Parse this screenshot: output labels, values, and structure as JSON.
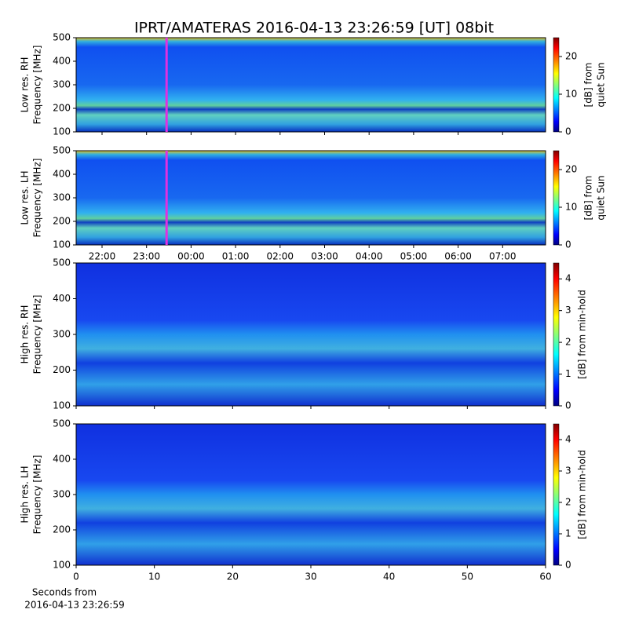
{
  "figure": {
    "title": "IPRT/AMATERAS 2016-04-13 23:26:59 [UT]   08bit",
    "xlabel": [
      "Seconds from",
      "2016-04-13 23:26:59"
    ]
  },
  "chart_data": [
    {
      "type": "spectrogram",
      "ylabel": [
        "Low res. RH",
        "Frequency [MHz]"
      ],
      "ylim": [
        100,
        500
      ],
      "yticks": [
        100,
        200,
        300,
        400,
        500
      ],
      "xlim": [
        21.418,
        31.965
      ],
      "xticks": [
        {
          "value": 22,
          "label": "22:00"
        },
        {
          "value": 23,
          "label": "23:00"
        },
        {
          "value": 24,
          "label": "00:00"
        },
        {
          "value": 25,
          "label": "01:00"
        },
        {
          "value": 26,
          "label": "02:00"
        },
        {
          "value": 27,
          "label": "03:00"
        },
        {
          "value": 28,
          "label": "04:00"
        },
        {
          "value": 29,
          "label": "05:00"
        },
        {
          "value": 30,
          "label": "06:00"
        },
        {
          "value": 31,
          "label": "07:00"
        }
      ],
      "show_xtick_labels": false,
      "marker": {
        "x": 23.45,
        "color": "#e030e0"
      },
      "colorbar": {
        "label": [
          "[dB] from",
          "quiet Sun"
        ],
        "lim": [
          0,
          25
        ],
        "ticks": [
          0,
          10,
          20
        ],
        "colormap": "jet"
      }
    },
    {
      "type": "spectrogram",
      "ylabel": [
        "Low res. LH",
        "Frequency [MHz]"
      ],
      "ylim": [
        100,
        500
      ],
      "yticks": [
        100,
        200,
        300,
        400,
        500
      ],
      "xlim": [
        21.418,
        31.965
      ],
      "xticks": [
        {
          "value": 22,
          "label": "22:00"
        },
        {
          "value": 23,
          "label": "23:00"
        },
        {
          "value": 24,
          "label": "00:00"
        },
        {
          "value": 25,
          "label": "01:00"
        },
        {
          "value": 26,
          "label": "02:00"
        },
        {
          "value": 27,
          "label": "03:00"
        },
        {
          "value": 28,
          "label": "04:00"
        },
        {
          "value": 29,
          "label": "05:00"
        },
        {
          "value": 30,
          "label": "06:00"
        },
        {
          "value": 31,
          "label": "07:00"
        }
      ],
      "show_xtick_labels": true,
      "marker": {
        "x": 23.45,
        "color": "#e030e0"
      },
      "colorbar": {
        "label": [
          "[dB] from",
          "quiet Sun"
        ],
        "lim": [
          0,
          25
        ],
        "ticks": [
          0,
          10,
          20
        ],
        "colormap": "jet"
      }
    },
    {
      "type": "spectrogram",
      "ylabel": [
        "High res. RH",
        "Frequency [MHz]"
      ],
      "ylim": [
        100,
        500
      ],
      "yticks": [
        100,
        200,
        300,
        400,
        500
      ],
      "xlim": [
        0,
        60
      ],
      "xticks": [
        0,
        10,
        20,
        30,
        40,
        50,
        60
      ],
      "show_xtick_labels": false,
      "colorbar": {
        "label": [
          "[dB] from min-hold"
        ],
        "lim": [
          0,
          4.5
        ],
        "ticks": [
          0,
          1,
          2,
          3,
          4
        ],
        "colormap": "jet"
      }
    },
    {
      "type": "spectrogram",
      "ylabel": [
        "High res. LH",
        "Frequency [MHz]"
      ],
      "ylim": [
        100,
        500
      ],
      "yticks": [
        100,
        200,
        300,
        400,
        500
      ],
      "xlim": [
        0,
        60
      ],
      "xticks": [
        0,
        10,
        20,
        30,
        40,
        50,
        60
      ],
      "show_xtick_labels": true,
      "colorbar": {
        "label": [
          "[dB] from min-hold"
        ],
        "lim": [
          0,
          4.5
        ],
        "ticks": [
          0,
          1,
          2,
          3,
          4
        ],
        "colormap": "jet"
      }
    }
  ]
}
